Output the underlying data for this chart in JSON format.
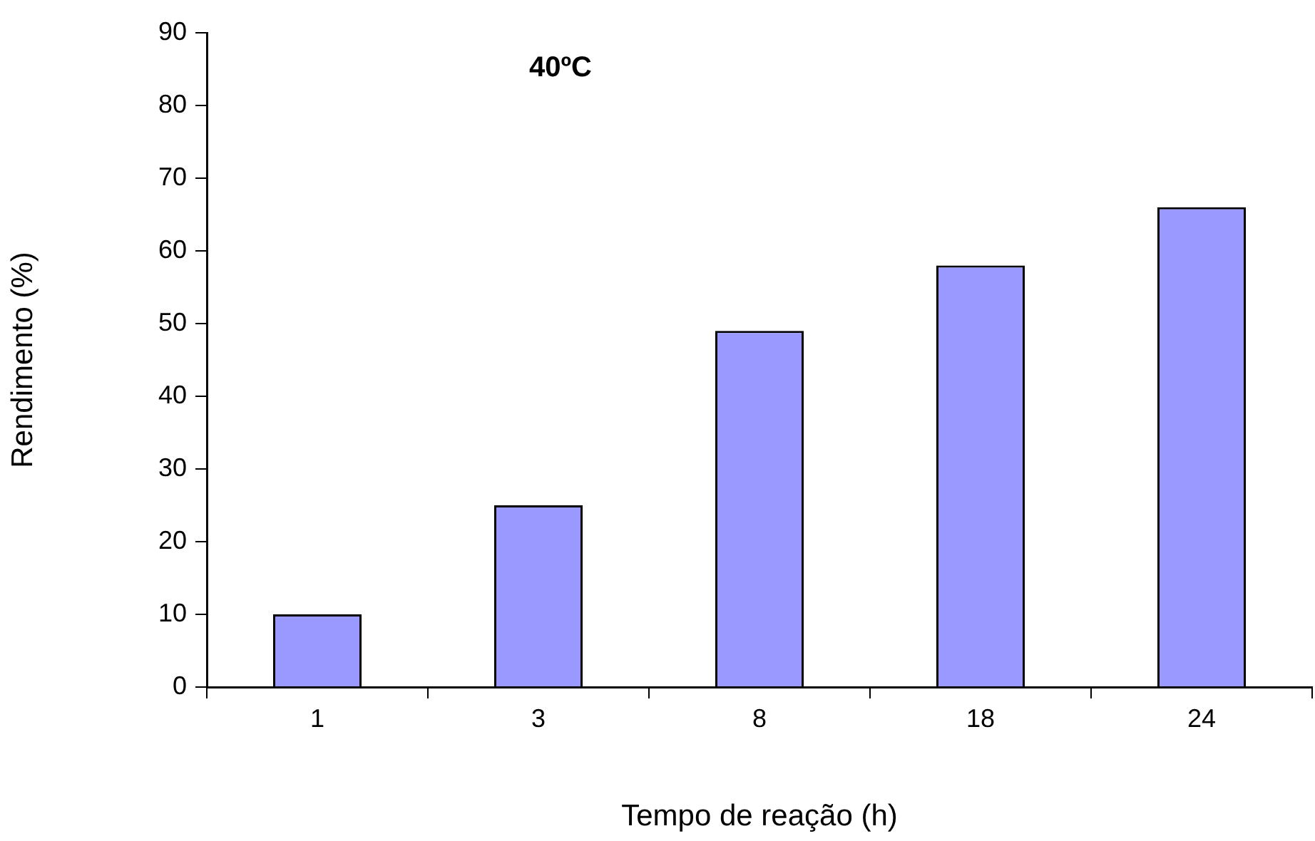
{
  "chart_data": {
    "type": "bar",
    "title": "40ºC",
    "xlabel": "Tempo de reação (h)",
    "ylabel": "Rendimento (%)",
    "categories": [
      "1",
      "3",
      "8",
      "18",
      "24"
    ],
    "values": [
      10,
      25,
      49,
      58,
      66
    ],
    "color": "#9999ff",
    "ylim": [
      0,
      90
    ],
    "yticks": [
      0,
      10,
      20,
      30,
      40,
      50,
      60,
      70,
      80,
      90
    ],
    "grid": false,
    "legend": false
  }
}
